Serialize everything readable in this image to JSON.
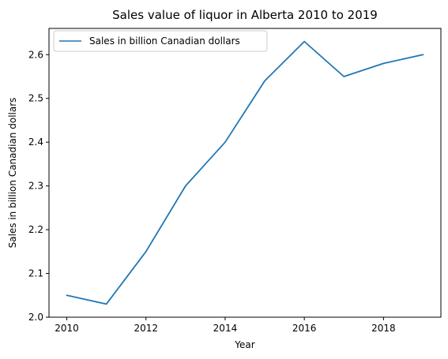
{
  "chart_data": {
    "type": "line",
    "title": "Sales value of liquor in Alberta 2010 to 2019",
    "xlabel": "Year",
    "ylabel": "Sales in billion Canadian dollars",
    "x": [
      2010,
      2011,
      2012,
      2013,
      2014,
      2015,
      2016,
      2017,
      2018,
      2019
    ],
    "series": [
      {
        "name": "Sales in billion Canadian dollars",
        "values": [
          2.05,
          2.03,
          2.15,
          2.3,
          2.4,
          2.54,
          2.63,
          2.55,
          2.58,
          2.6
        ],
        "color": "#1f77b4"
      }
    ],
    "xlim": [
      2009.55,
      2019.45
    ],
    "ylim": [
      2.0,
      2.66
    ],
    "xticks": [
      2010,
      2012,
      2014,
      2016,
      2018
    ],
    "yticks": [
      2.0,
      2.1,
      2.2,
      2.3,
      2.4,
      2.5,
      2.6
    ],
    "xtick_labels": [
      "2010",
      "2012",
      "2014",
      "2016",
      "2018"
    ],
    "ytick_labels": [
      "2.0",
      "2.1",
      "2.2",
      "2.3",
      "2.4",
      "2.5",
      "2.6"
    ],
    "grid": false,
    "legend_position": "upper-left"
  }
}
